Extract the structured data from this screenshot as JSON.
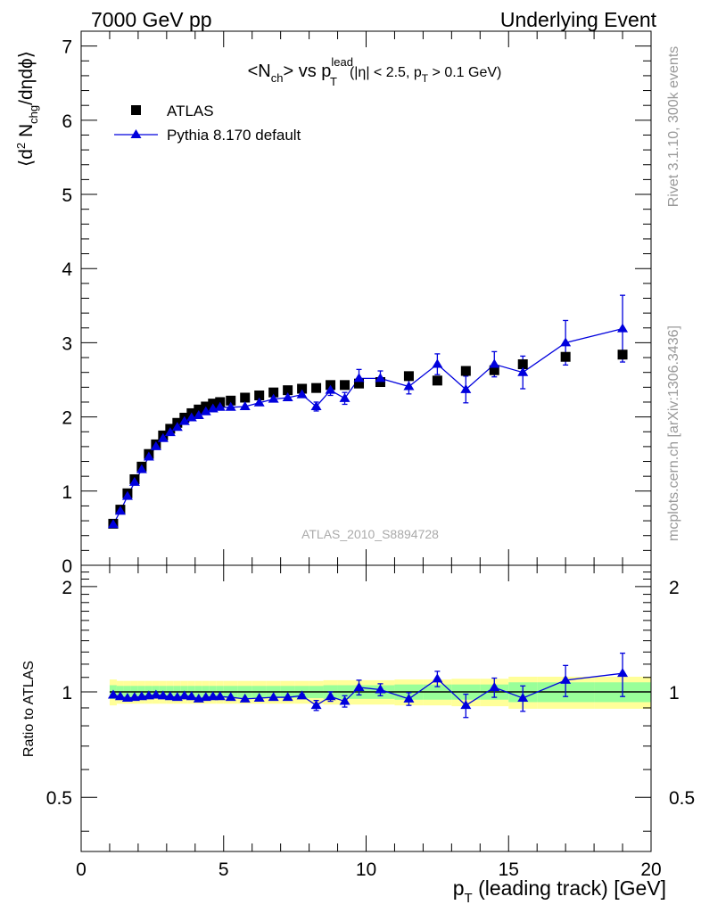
{
  "header": {
    "left": "7000 GeV pp",
    "right": "Underlying Event"
  },
  "side_labels": {
    "rivet": "Rivet 3.1.10,  300k events",
    "mcplots": "mcplots.cern.ch [arXiv:1306.3436]"
  },
  "colors": {
    "data": "#000000",
    "mc": "#0000dd",
    "band_inner": "#99ff99",
    "band_outer": "#ffff99"
  },
  "chart_data": [
    {
      "type": "scatter",
      "title": {
        "main_start": "<N",
        "main_sub": "ch",
        "main_mid": "> vs p",
        "main_sup": "lead",
        "main_sub2": "T",
        "cuts_start": "(|η| < 2.5, p",
        "cuts_sub": "T",
        "cuts_end": " > 0.1 GeV)"
      },
      "ylabel": {
        "start": "⟨d",
        "sup": "2",
        "mid": " N",
        "sub": "chg",
        "end": "/dηdϕ⟩"
      },
      "xlim": [
        0,
        20
      ],
      "ylim": [
        0,
        7.2
      ],
      "yticks": [
        0,
        1,
        2,
        3,
        4,
        5,
        6,
        7
      ],
      "watermark": "ATLAS_2010_S8894728",
      "legend": {
        "placement": "top-left",
        "entries": [
          "ATLAS",
          "Pythia 8.170 default"
        ]
      },
      "series": [
        {
          "name": "ATLAS",
          "marker": "square",
          "x": [
            1.125,
            1.375,
            1.625,
            1.875,
            2.125,
            2.375,
            2.625,
            2.875,
            3.125,
            3.375,
            3.625,
            3.875,
            4.125,
            4.375,
            4.625,
            4.875,
            5.25,
            5.75,
            6.25,
            6.75,
            7.25,
            7.75,
            8.25,
            8.75,
            9.25,
            9.75,
            10.5,
            11.5,
            12.5,
            13.5,
            14.5,
            15.5,
            17.0,
            19.0
          ],
          "y": [
            0.56,
            0.75,
            0.97,
            1.16,
            1.33,
            1.5,
            1.63,
            1.75,
            1.84,
            1.92,
            1.99,
            2.05,
            2.1,
            2.14,
            2.18,
            2.2,
            2.22,
            2.26,
            2.29,
            2.33,
            2.36,
            2.38,
            2.39,
            2.43,
            2.43,
            2.45,
            2.47,
            2.55,
            2.49,
            2.62,
            2.63,
            2.71,
            2.81,
            2.84
          ]
        },
        {
          "name": "Pythia 8.170 default",
          "marker": "triangle",
          "x": [
            1.125,
            1.375,
            1.625,
            1.875,
            2.125,
            2.375,
            2.625,
            2.875,
            3.125,
            3.375,
            3.625,
            3.875,
            4.125,
            4.375,
            4.625,
            4.875,
            5.25,
            5.75,
            6.25,
            6.75,
            7.25,
            7.75,
            8.25,
            8.75,
            9.25,
            9.75,
            10.5,
            11.5,
            12.5,
            13.5,
            14.5,
            15.5,
            17.0,
            19.0
          ],
          "y": [
            0.55,
            0.73,
            0.93,
            1.12,
            1.29,
            1.46,
            1.6,
            1.71,
            1.79,
            1.86,
            1.94,
            1.99,
            2.02,
            2.07,
            2.11,
            2.13,
            2.13,
            2.14,
            2.19,
            2.24,
            2.26,
            2.3,
            2.14,
            2.36,
            2.25,
            2.52,
            2.52,
            2.41,
            2.71,
            2.37,
            2.71,
            2.6,
            3.0,
            3.19
          ],
          "yerr": [
            0,
            0,
            0,
            0,
            0,
            0,
            0,
            0,
            0,
            0,
            0,
            0,
            0,
            0,
            0,
            0,
            0,
            0,
            0,
            0,
            0,
            0,
            0.06,
            0.07,
            0.08,
            0.12,
            0.1,
            0.1,
            0.14,
            0.18,
            0.17,
            0.22,
            0.3,
            0.45
          ]
        }
      ]
    },
    {
      "type": "scatter",
      "xlabel": {
        "start": "p",
        "sub": "T",
        "end": " (leading track) [GeV]"
      },
      "ylabel": "Ratio to ATLAS",
      "xlim": [
        0,
        20
      ],
      "ylim": [
        0.35,
        2.3
      ],
      "y_scale": "log",
      "xticks": [
        0,
        5,
        10,
        15,
        20
      ],
      "yticks": [
        0.5,
        1,
        2
      ],
      "reference": 1,
      "series": [
        {
          "name": "Pythia 8.170 default",
          "x": [
            1.125,
            1.375,
            1.625,
            1.875,
            2.125,
            2.375,
            2.625,
            2.875,
            3.125,
            3.375,
            3.625,
            3.875,
            4.125,
            4.375,
            4.625,
            4.875,
            5.25,
            5.75,
            6.25,
            6.75,
            7.25,
            7.75,
            8.25,
            8.75,
            9.25,
            9.75,
            10.5,
            11.5,
            12.5,
            13.5,
            14.5,
            15.5,
            17.0,
            19.0
          ],
          "y": [
            0.98,
            0.97,
            0.96,
            0.965,
            0.97,
            0.975,
            0.98,
            0.975,
            0.97,
            0.965,
            0.975,
            0.97,
            0.955,
            0.965,
            0.97,
            0.97,
            0.965,
            0.955,
            0.96,
            0.965,
            0.965,
            0.975,
            0.915,
            0.97,
            0.94,
            1.03,
            1.015,
            0.955,
            1.09,
            0.915,
            1.03,
            0.96,
            1.08,
            1.13
          ],
          "yerr": [
            0,
            0,
            0,
            0,
            0,
            0,
            0,
            0,
            0,
            0,
            0,
            0,
            0,
            0,
            0,
            0,
            0,
            0,
            0,
            0,
            0,
            0.01,
            0.03,
            0.03,
            0.035,
            0.05,
            0.04,
            0.04,
            0.055,
            0.07,
            0.065,
            0.08,
            0.11,
            0.16
          ]
        },
        {
          "name": "ATLAS uncertainty",
          "x_edges": [
            1.0,
            1.25,
            1.5,
            1.75,
            2.0,
            2.25,
            2.5,
            2.75,
            3.0,
            3.25,
            3.5,
            3.75,
            4.0,
            4.25,
            4.5,
            4.75,
            5.0,
            5.5,
            6.0,
            6.5,
            7.0,
            7.5,
            8.0,
            8.5,
            9.0,
            9.5,
            10.0,
            11.0,
            12.0,
            13.0,
            14.0,
            15.0,
            16.0,
            18.0,
            20.0
          ],
          "stat": [
            0.045,
            0.04,
            0.04,
            0.04,
            0.04,
            0.04,
            0.04,
            0.04,
            0.04,
            0.04,
            0.04,
            0.04,
            0.04,
            0.04,
            0.04,
            0.04,
            0.04,
            0.04,
            0.04,
            0.04,
            0.04,
            0.04,
            0.04,
            0.045,
            0.045,
            0.045,
            0.045,
            0.05,
            0.05,
            0.05,
            0.05,
            0.065,
            0.065,
            0.065
          ],
          "total": [
            0.085,
            0.075,
            0.075,
            0.075,
            0.075,
            0.075,
            0.075,
            0.075,
            0.075,
            0.075,
            0.075,
            0.075,
            0.075,
            0.075,
            0.075,
            0.075,
            0.075,
            0.075,
            0.075,
            0.075,
            0.075,
            0.075,
            0.075,
            0.08,
            0.08,
            0.08,
            0.08,
            0.085,
            0.085,
            0.09,
            0.09,
            0.105,
            0.105,
            0.105
          ]
        }
      ]
    }
  ]
}
